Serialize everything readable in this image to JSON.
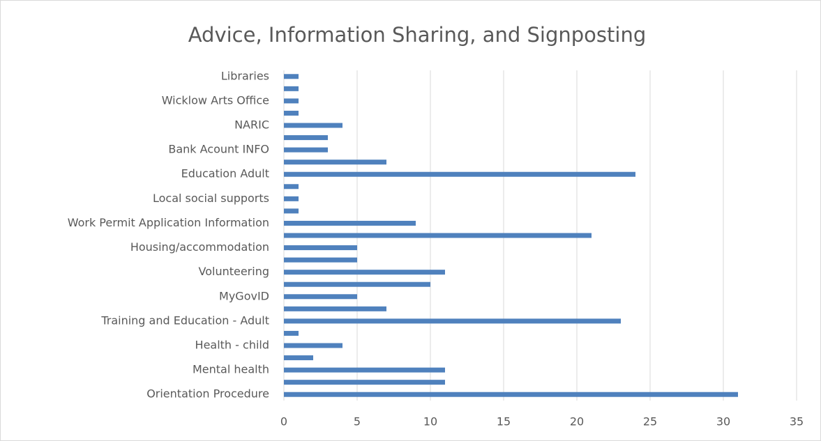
{
  "chart_data": {
    "type": "bar",
    "orientation": "horizontal",
    "title": "Advice, Information Sharing, and Signposting",
    "categories": [
      "Libraries",
      null,
      "Wicklow Arts Office",
      null,
      "NARIC",
      null,
      "Bank Acount INFO",
      null,
      "Education Adult",
      null,
      "Local social supports",
      null,
      "Work Permit Application Information",
      null,
      "Housing/accommodation",
      null,
      "Volunteering",
      null,
      "MyGovID",
      null,
      "Training and Education - Adult",
      null,
      "Health - child",
      null,
      "Mental health",
      null,
      "Orientation Procedure"
    ],
    "values": [
      1,
      1,
      1,
      1,
      4,
      3,
      3,
      7,
      24,
      1,
      1,
      1,
      9,
      21,
      5,
      5,
      11,
      10,
      5,
      7,
      23,
      1,
      4,
      2,
      11,
      11,
      31
    ],
    "color": "#4f81bd",
    "xlim": [
      0,
      35
    ],
    "xticks": [
      0,
      5,
      10,
      15,
      20,
      25,
      30,
      35
    ],
    "grid": true
  }
}
